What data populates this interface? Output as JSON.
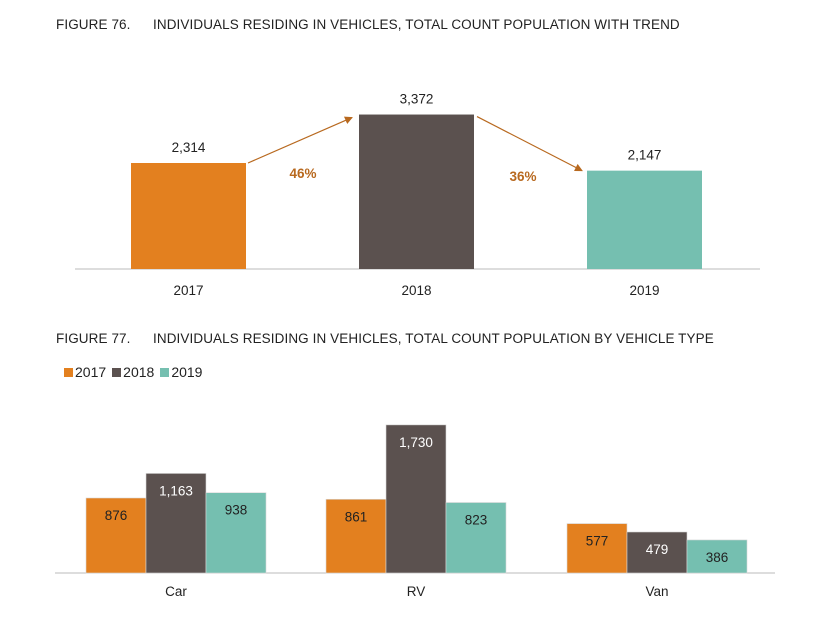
{
  "colors": {
    "2017": "#E3801F",
    "2018": "#5B514F",
    "2019": "#75BFB0",
    "trend_arrow": "#B8691F"
  },
  "chart_data": [
    {
      "type": "bar",
      "figure_number": "FIGURE 76.",
      "title": "INDIVIDUALS RESIDING IN VEHICLES, TOTAL COUNT POPULATION WITH TREND",
      "categories": [
        "2017",
        "2018",
        "2019"
      ],
      "values": [
        2314,
        3372,
        2147
      ],
      "data_labels": [
        "2,314",
        "3,372",
        "2,147"
      ],
      "annotations": [
        {
          "from": "2017",
          "to": "2018",
          "text": "46%"
        },
        {
          "from": "2018",
          "to": "2019",
          "text": "36%"
        }
      ],
      "grid": false
    },
    {
      "type": "bar",
      "figure_number": "FIGURE 77.",
      "title": "INDIVIDUALS RESIDING IN VEHICLES, TOTAL COUNT POPULATION BY VEHICLE TYPE",
      "categories": [
        "Car",
        "RV",
        "Van"
      ],
      "series": [
        {
          "name": "2017",
          "values": [
            876,
            861,
            577
          ],
          "labels": [
            "876",
            "861",
            "577"
          ]
        },
        {
          "name": "2018",
          "values": [
            1163,
            1730,
            479
          ],
          "labels": [
            "1,163",
            "1,730",
            "479"
          ]
        },
        {
          "name": "2019",
          "values": [
            938,
            823,
            386
          ],
          "labels": [
            "938",
            "823",
            "386"
          ]
        }
      ],
      "legend": "top-left",
      "grid": false
    }
  ]
}
